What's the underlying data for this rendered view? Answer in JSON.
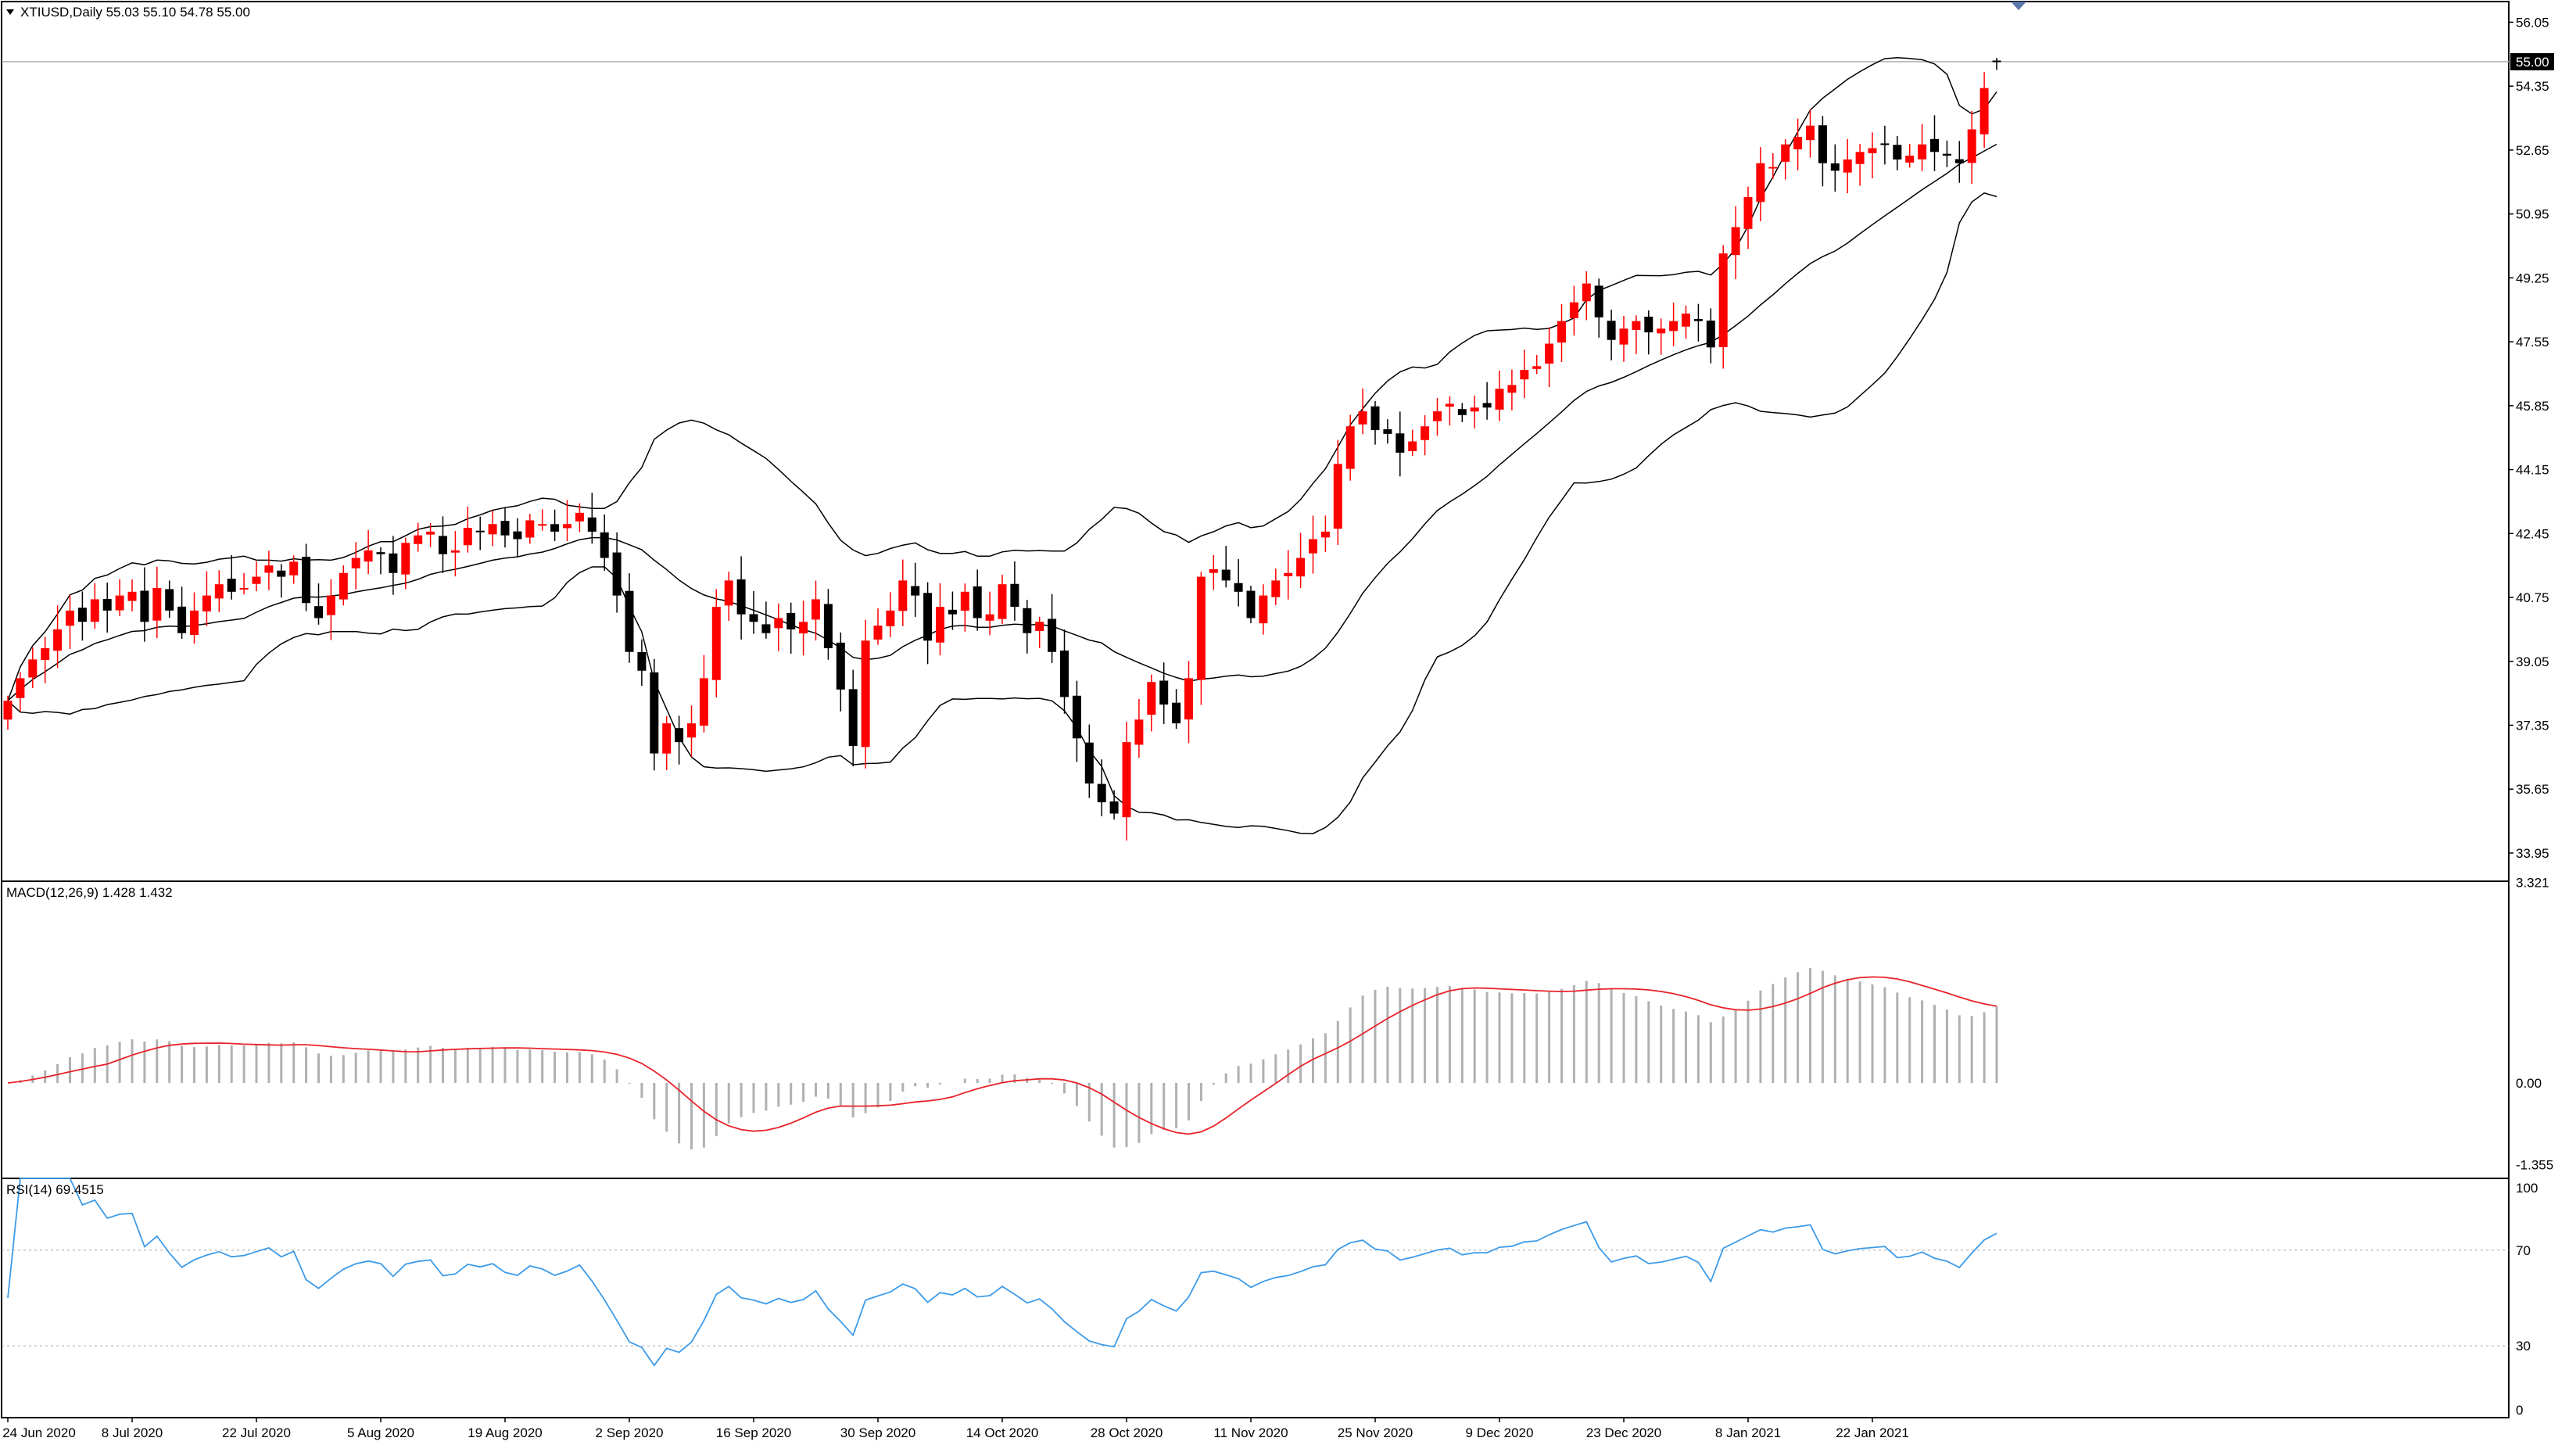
{
  "header": {
    "symbol_line": "XTIUSD,Daily  55.03 55.10 54.78 55.00",
    "macd_line": "MACD(12,26,9) 1.428 1.432",
    "rsi_line": "RSI(14) 69.4515"
  },
  "colors": {
    "bull": "#ff0000",
    "bear": "#000000",
    "signal": "#e8232a",
    "macd_hist": "#b0b0b0",
    "rsi": "#3d9be9",
    "bollinger": "#000000",
    "grid_level": "#b0b0b0",
    "price_tag_bg": "#000000",
    "price_tag_text": "#ffffff"
  },
  "chart_data": [
    {
      "type": "candlestick",
      "title": "XTIUSD,Daily",
      "header_values": {
        "open": 55.03,
        "high": 55.1,
        "low": 54.78,
        "close": 55.0
      },
      "current_price_label": "55.00",
      "y_ticks": [
        "56.05",
        "54.35",
        "52.65",
        "50.95",
        "49.25",
        "47.55",
        "45.85",
        "44.15",
        "42.45",
        "40.75",
        "39.05",
        "37.35",
        "35.65",
        "33.95"
      ],
      "ylim": [
        33.2,
        56.6
      ],
      "x_labels": [
        "24 Jun 2020",
        "8 Jul 2020",
        "22 Jul 2020",
        "5 Aug 2020",
        "19 Aug 2020",
        "2 Sep 2020",
        "16 Sep 2020",
        "30 Sep 2020",
        "14 Oct 2020",
        "28 Oct 2020",
        "11 Nov 2020",
        "25 Nov 2020",
        "9 Dec 2020",
        "23 Dec 2020",
        "8 Jan 2021",
        "22 Jan 2021"
      ],
      "indicator": "Bollinger Bands (20, 2)",
      "close": [
        38.0,
        38.6,
        39.1,
        39.4,
        39.9,
        40.4,
        40.1,
        40.7,
        40.4,
        40.8,
        40.9,
        40.1,
        41.0,
        40.4,
        39.8,
        40.4,
        40.8,
        41.1,
        40.9,
        41.0,
        41.3,
        41.6,
        41.3,
        41.7,
        40.6,
        40.2,
        40.8,
        41.4,
        41.8,
        42.0,
        41.9,
        41.4,
        42.2,
        42.4,
        42.5,
        41.9,
        42.0,
        42.6,
        42.5,
        42.7,
        42.4,
        42.3,
        42.8,
        42.7,
        42.5,
        42.7,
        43.0,
        42.5,
        41.8,
        40.8,
        39.3,
        38.8,
        36.6,
        37.4,
        36.9,
        37.4,
        38.6,
        40.5,
        41.2,
        40.3,
        40.1,
        39.8,
        40.2,
        39.9,
        40.1,
        40.7,
        39.4,
        38.3,
        36.8,
        39.6,
        40.0,
        40.4,
        41.2,
        40.8,
        39.6,
        40.5,
        40.3,
        40.9,
        40.2,
        40.3,
        41.1,
        40.5,
        39.8,
        40.1,
        39.3,
        38.1,
        37.0,
        35.8,
        35.3,
        35.0,
        36.9,
        37.5,
        38.5,
        37.9,
        37.4,
        38.6,
        41.3,
        41.5,
        41.2,
        40.9,
        40.2,
        40.8,
        41.2,
        41.4,
        41.8,
        42.3,
        42.5,
        44.3,
        45.3,
        45.7,
        45.2,
        45.1,
        44.6,
        44.9,
        45.3,
        45.7,
        45.9,
        45.6,
        45.8,
        45.8,
        46.3,
        46.4,
        46.8,
        46.9,
        47.5,
        48.1,
        48.6,
        49.1,
        48.2,
        47.6,
        47.9,
        48.1,
        47.8,
        47.9,
        48.1,
        48.3,
        48.1,
        47.4,
        49.9,
        50.6,
        51.4,
        52.3,
        52.2,
        52.8,
        53.0,
        53.3,
        52.3,
        52.1,
        52.4,
        52.6,
        52.7,
        52.8,
        52.4,
        52.5,
        52.8,
        52.6,
        52.5,
        52.3,
        53.2,
        54.3,
        55.0
      ]
    },
    {
      "type": "bar+line",
      "title": "MACD(12,26,9)",
      "main_value": 1.428,
      "signal_value": 1.432,
      "y_ticks": [
        "3.321",
        "0.00",
        "-1.355"
      ],
      "ylim": [
        -1.58,
        3.34
      ],
      "series": [
        {
          "kind": "histogram"
        },
        {
          "kind": "signal_line"
        }
      ]
    },
    {
      "type": "line",
      "title": "RSI(14)",
      "last_value": 69.4515,
      "y_ticks": [
        "100",
        "70",
        "30",
        "0"
      ],
      "levels": [
        70,
        30
      ],
      "ylim": [
        0,
        100
      ]
    }
  ]
}
